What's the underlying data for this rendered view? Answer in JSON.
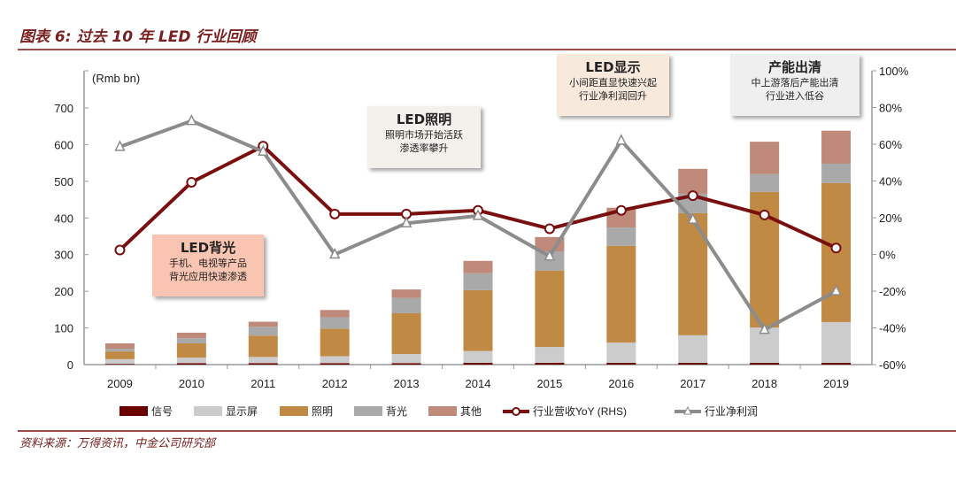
{
  "title": "图表 6: 过去 10 年 LED 行业回顾",
  "source": "资料来源：万得资讯，中金公司研究部",
  "callouts": [
    {
      "heading": "LED背光",
      "lines": [
        "手机、电视等产品",
        "背光应用快速渗透"
      ],
      "bg": "#f9c5b2"
    },
    {
      "heading": "LED照明",
      "lines": [
        "照明市场开始活跃",
        "渗透率攀升"
      ],
      "bg": "#f4f1ec"
    },
    {
      "heading": "LED显示",
      "lines": [
        "小间距直显快速兴起",
        "行业净利润回升"
      ],
      "bg": "#f8e9dd"
    },
    {
      "heading": "产能出清",
      "lines": [
        "中上游落后产能出清",
        "行业进入低谷"
      ],
      "bg": "#efefef"
    }
  ],
  "chart_data": {
    "type": "bar",
    "stacked": true,
    "title": "过去 10 年 LED 行业回顾",
    "ylabel": "(Rmb bn)",
    "ylim": [
      0,
      700
    ],
    "yticks": [
      "0",
      "100",
      "200",
      "300",
      "400",
      "500",
      "600",
      "700"
    ],
    "y2lim": [
      -60,
      100
    ],
    "y2ticks": [
      "-60%",
      "-40%",
      "-20%",
      "0%",
      "20%",
      "40%",
      "60%",
      "80%",
      "100%"
    ],
    "categories": [
      "2009",
      "2010",
      "2011",
      "2012",
      "2013",
      "2014",
      "2015",
      "2016",
      "2017",
      "2018",
      "2019"
    ],
    "series": [
      {
        "name": "信号",
        "color": "#6b0000",
        "values": [
          2,
          4,
          4,
          4,
          4,
          5,
          5,
          5,
          5,
          5,
          5
        ]
      },
      {
        "name": "显示屏",
        "color": "#cccccc",
        "values": [
          13,
          15,
          17,
          19,
          25,
          32,
          43,
          55,
          75,
          96,
          111
        ]
      },
      {
        "name": "照明",
        "color": "#c08a45",
        "values": [
          21,
          39,
          58,
          75,
          111,
          166,
          208,
          264,
          333,
          370,
          379
        ]
      },
      {
        "name": "背光",
        "color": "#a9a9a9",
        "values": [
          7,
          14,
          24,
          31,
          42,
          46,
          53,
          50,
          53,
          49,
          53
        ]
      },
      {
        "name": "其他",
        "color": "#bf8a7a",
        "values": [
          15,
          15,
          14,
          20,
          23,
          34,
          39,
          54,
          68,
          88,
          90
        ]
      }
    ],
    "lines": [
      {
        "name": "行业营收YoY (RHS)",
        "color": "#7a0f0f",
        "marker": "circle",
        "axis": "right",
        "values": [
          2.4,
          39.3,
          59,
          22,
          22,
          24,
          14,
          24,
          32,
          21.5,
          3.5
        ]
      },
      {
        "name": "行业净利润",
        "color": "#8c8c8c",
        "marker": "triangle",
        "axis": "right",
        "values": [
          58.6,
          72.7,
          56,
          0,
          17,
          21,
          -1,
          62,
          19,
          -41,
          -20
        ]
      }
    ],
    "legend": "bottom",
    "grid": false
  }
}
